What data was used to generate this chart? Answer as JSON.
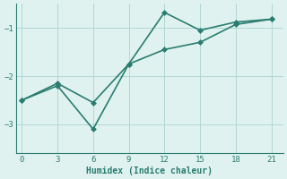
{
  "xlabel": "Humidex (Indice chaleur)",
  "line1_x": [
    0,
    3,
    6,
    9,
    12,
    15,
    18,
    21
  ],
  "line1_y": [
    -2.5,
    -2.2,
    -3.1,
    -1.75,
    -0.68,
    -1.05,
    -0.88,
    -0.82
  ],
  "line2_x": [
    0,
    3,
    6,
    9,
    12,
    15,
    18,
    21
  ],
  "line2_y": [
    -2.5,
    -2.15,
    -2.55,
    -1.75,
    -1.45,
    -1.3,
    -0.93,
    -0.82
  ],
  "line_color": "#2a7d70",
  "bg_color": "#e0f2f0",
  "grid_color": "#b0d8d4",
  "xlim": [
    -0.5,
    22
  ],
  "ylim": [
    -3.6,
    -0.5
  ],
  "xticks": [
    0,
    3,
    6,
    9,
    12,
    15,
    18,
    21
  ],
  "yticks": [
    -3,
    -2,
    -1
  ],
  "marker": "D",
  "marker_size": 3,
  "linewidth": 1.2,
  "tick_fontsize": 6.5,
  "xlabel_fontsize": 7
}
